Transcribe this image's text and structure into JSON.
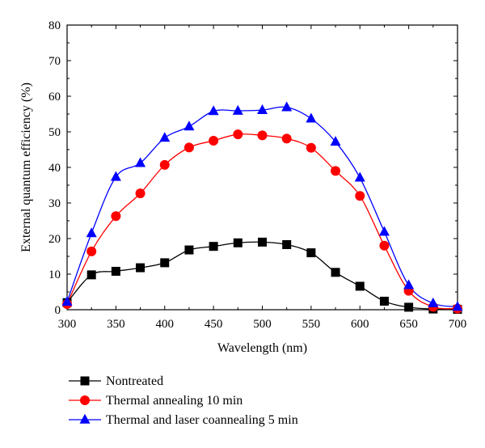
{
  "chart_data": {
    "type": "line",
    "xlabel": "Wavelength (nm)",
    "ylabel": "External quantum efficiency (%)",
    "xlim": [
      300,
      700
    ],
    "ylim": [
      0,
      80
    ],
    "xticks": [
      300,
      350,
      400,
      450,
      500,
      550,
      600,
      650,
      700
    ],
    "yticks": [
      0,
      10,
      20,
      30,
      40,
      50,
      60,
      70,
      80
    ],
    "grid": false,
    "legend_position": "bottom",
    "x": [
      300,
      325,
      350,
      375,
      400,
      425,
      450,
      475,
      500,
      525,
      550,
      575,
      600,
      625,
      650,
      675,
      700
    ],
    "series": [
      {
        "name": "Nontreated",
        "marker": "square",
        "color": "#000000",
        "values": [
          2.0,
          9.8,
          10.8,
          11.8,
          13.2,
          16.8,
          17.8,
          18.8,
          19.0,
          18.3,
          16.0,
          10.5,
          6.6,
          2.4,
          0.7,
          0.2,
          0.1
        ]
      },
      {
        "name": "Thermal annealing 10 min",
        "marker": "circle",
        "color": "#ff0000",
        "values": [
          1.6,
          16.4,
          26.3,
          32.7,
          40.7,
          45.6,
          47.5,
          49.3,
          49.0,
          48.1,
          45.5,
          39.0,
          32.0,
          18.0,
          5.3,
          0.8,
          0.3
        ]
      },
      {
        "name": "Thermal and laser coannealing 5 min",
        "marker": "triangle",
        "color": "#0000ff",
        "values": [
          2.2,
          21.5,
          37.3,
          41.2,
          48.3,
          51.5,
          55.8,
          55.9,
          56.1,
          56.9,
          53.7,
          47.2,
          37.1,
          21.9,
          6.9,
          1.8,
          0.8
        ]
      }
    ]
  }
}
